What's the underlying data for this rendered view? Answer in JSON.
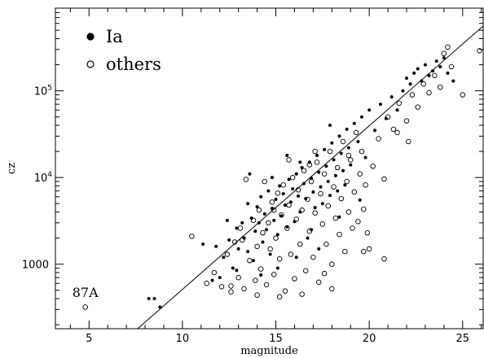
{
  "chart_data": {
    "type": "scatter",
    "title": "",
    "xlabel": "magnitude",
    "ylabel": "cz",
    "xlim": [
      3.2,
      26.1
    ],
    "ylim": [
      180,
      900000
    ],
    "yscale": "log",
    "grid": false,
    "legend_position": "top-left",
    "x_ticks": [
      {
        "value": 5,
        "label": "5"
      },
      {
        "value": 10,
        "label": "10"
      },
      {
        "value": 15,
        "label": "15"
      },
      {
        "value": 20,
        "label": "20"
      },
      {
        "value": 25,
        "label": "25"
      }
    ],
    "y_ticks": [
      {
        "value": 1000,
        "label": "1000"
      },
      {
        "value": 10000,
        "label": "10",
        "exp": "4"
      },
      {
        "value": 100000,
        "label": "10",
        "exp": "5"
      }
    ],
    "series": [
      {
        "name": "Ia",
        "marker": "filled-circle",
        "color": "#000000",
        "points": [
          [
            8.2,
            400
          ],
          [
            8.5,
            400
          ],
          [
            8.8,
            320
          ],
          [
            11.1,
            1700
          ],
          [
            11.8,
            1600
          ],
          [
            12.0,
            700
          ],
          [
            12.2,
            1200
          ],
          [
            12.5,
            1900
          ],
          [
            12.7,
            900
          ],
          [
            12.9,
            2600
          ],
          [
            13.0,
            1500
          ],
          [
            13.2,
            3000
          ],
          [
            13.3,
            2000
          ],
          [
            13.5,
            1400
          ],
          [
            13.5,
            5000
          ],
          [
            13.7,
            3400
          ],
          [
            13.8,
            1100
          ],
          [
            13.9,
            2400
          ],
          [
            14.0,
            4600
          ],
          [
            14.1,
            3000
          ],
          [
            14.2,
            6000
          ],
          [
            14.3,
            1800
          ],
          [
            14.4,
            3800
          ],
          [
            14.5,
            2500
          ],
          [
            14.6,
            7000
          ],
          [
            14.7,
            1300
          ],
          [
            14.8,
            4400
          ],
          [
            14.9,
            3200
          ],
          [
            15.0,
            5600
          ],
          [
            15.1,
            2200
          ],
          [
            15.2,
            8000
          ],
          [
            15.3,
            3600
          ],
          [
            15.4,
            6500
          ],
          [
            15.5,
            4800
          ],
          [
            15.6,
            2700
          ],
          [
            15.7,
            9500
          ],
          [
            15.8,
            5200
          ],
          [
            15.9,
            7400
          ],
          [
            16.0,
            3100
          ],
          [
            16.1,
            11000
          ],
          [
            16.2,
            6100
          ],
          [
            16.3,
            4000
          ],
          [
            16.4,
            13000
          ],
          [
            16.5,
            8500
          ],
          [
            16.6,
            5700
          ],
          [
            16.7,
            2000
          ],
          [
            16.8,
            15000
          ],
          [
            16.9,
            9800
          ],
          [
            17.0,
            6800
          ],
          [
            17.1,
            4500
          ],
          [
            17.2,
            18000
          ],
          [
            17.3,
            11500
          ],
          [
            17.4,
            7800
          ],
          [
            17.5,
            5000
          ],
          [
            17.6,
            21000
          ],
          [
            17.7,
            13500
          ],
          [
            17.8,
            9000
          ],
          [
            17.9,
            6200
          ],
          [
            18.0,
            25000
          ],
          [
            18.1,
            16000
          ],
          [
            18.2,
            10500
          ],
          [
            18.3,
            7000
          ],
          [
            18.4,
            30000
          ],
          [
            18.5,
            19000
          ],
          [
            18.6,
            12000
          ],
          [
            18.7,
            8200
          ],
          [
            18.8,
            36000
          ],
          [
            18.9,
            22000
          ],
          [
            19.0,
            14000
          ],
          [
            19.2,
            42000
          ],
          [
            19.4,
            26000
          ],
          [
            19.6,
            50000
          ],
          [
            19.8,
            17000
          ],
          [
            20.0,
            60000
          ],
          [
            20.3,
            35000
          ],
          [
            20.6,
            70000
          ],
          [
            20.9,
            48000
          ],
          [
            21.2,
            85000
          ],
          [
            21.5,
            60000
          ],
          [
            21.8,
            100000
          ],
          [
            22.0,
            140000
          ],
          [
            22.2,
            120000
          ],
          [
            22.4,
            160000
          ],
          [
            22.6,
            180000
          ],
          [
            22.8,
            130000
          ],
          [
            23.0,
            200000
          ],
          [
            23.2,
            150000
          ],
          [
            23.4,
            170000
          ],
          [
            23.6,
            220000
          ],
          [
            23.8,
            190000
          ],
          [
            24.0,
            240000
          ],
          [
            24.2,
            160000
          ],
          [
            24.5,
            130000
          ],
          [
            16.3,
            15000
          ],
          [
            15.6,
            18000
          ],
          [
            17.9,
            40000
          ],
          [
            14.8,
            10000
          ],
          [
            13.6,
            11000
          ],
          [
            12.4,
            3200
          ],
          [
            16.9,
            2500
          ],
          [
            18.4,
            3500
          ],
          [
            19.5,
            5500
          ],
          [
            17.3,
            1500
          ],
          [
            15.1,
            900
          ],
          [
            14.2,
            750
          ],
          [
            16.1,
            1200
          ],
          [
            11.6,
            650
          ],
          [
            12.9,
            850
          ]
        ]
      },
      {
        "name": "others",
        "marker": "open-circle",
        "color": "#000000",
        "points": [
          [
            4.8,
            320
          ],
          [
            10.5,
            2100
          ],
          [
            11.3,
            600
          ],
          [
            11.7,
            800
          ],
          [
            12.1,
            550
          ],
          [
            12.4,
            1300
          ],
          [
            12.6,
            480
          ],
          [
            12.8,
            1800
          ],
          [
            13.0,
            700
          ],
          [
            13.1,
            2600
          ],
          [
            13.3,
            520
          ],
          [
            13.4,
            9500
          ],
          [
            13.6,
            1100
          ],
          [
            13.8,
            3200
          ],
          [
            13.9,
            650
          ],
          [
            14.0,
            1600
          ],
          [
            14.1,
            4200
          ],
          [
            14.2,
            880
          ],
          [
            14.3,
            2300
          ],
          [
            14.4,
            9000
          ],
          [
            14.5,
            580
          ],
          [
            14.6,
            3000
          ],
          [
            14.7,
            1500
          ],
          [
            14.8,
            5200
          ],
          [
            14.9,
            760
          ],
          [
            15.0,
            2000
          ],
          [
            15.1,
            6600
          ],
          [
            15.2,
            1150
          ],
          [
            15.3,
            3700
          ],
          [
            15.4,
            8200
          ],
          [
            15.5,
            490
          ],
          [
            15.6,
            2600
          ],
          [
            15.7,
            4800
          ],
          [
            15.8,
            1300
          ],
          [
            15.9,
            10000
          ],
          [
            16.0,
            680
          ],
          [
            16.1,
            3300
          ],
          [
            16.2,
            7200
          ],
          [
            16.3,
            1700
          ],
          [
            16.4,
            4200
          ],
          [
            16.5,
            12000
          ],
          [
            16.6,
            840
          ],
          [
            16.7,
            5600
          ],
          [
            16.8,
            2400
          ],
          [
            16.9,
            9000
          ],
          [
            17.0,
            1200
          ],
          [
            17.1,
            3900
          ],
          [
            17.2,
            15000
          ],
          [
            17.3,
            620
          ],
          [
            17.4,
            6500
          ],
          [
            17.5,
            2900
          ],
          [
            17.6,
            11000
          ],
          [
            17.7,
            1700
          ],
          [
            17.8,
            4700
          ],
          [
            17.9,
            20000
          ],
          [
            18.0,
            1000
          ],
          [
            18.1,
            7800
          ],
          [
            18.2,
            3400
          ],
          [
            18.3,
            13000
          ],
          [
            18.4,
            2200
          ],
          [
            18.5,
            5700
          ],
          [
            18.6,
            26000
          ],
          [
            18.7,
            1400
          ],
          [
            18.8,
            9000
          ],
          [
            18.9,
            4000
          ],
          [
            19.0,
            16000
          ],
          [
            19.1,
            2600
          ],
          [
            19.2,
            6800
          ],
          [
            19.3,
            33000
          ],
          [
            19.4,
            3100
          ],
          [
            19.5,
            11000
          ],
          [
            19.6,
            20000
          ],
          [
            19.7,
            4300
          ],
          [
            19.8,
            8200
          ],
          [
            20.0,
            1500
          ],
          [
            20.2,
            13500
          ],
          [
            20.5,
            28000
          ],
          [
            20.8,
            9600
          ],
          [
            21.0,
            50000
          ],
          [
            21.3,
            36000
          ],
          [
            21.6,
            72000
          ],
          [
            22.0,
            45000
          ],
          [
            22.3,
            90000
          ],
          [
            22.6,
            65000
          ],
          [
            22.9,
            120000
          ],
          [
            23.2,
            95000
          ],
          [
            23.5,
            150000
          ],
          [
            23.8,
            110000
          ],
          [
            24.0,
            270000
          ],
          [
            24.2,
            320000
          ],
          [
            24.4,
            190000
          ],
          [
            25.0,
            90000
          ],
          [
            25.9,
            290000
          ],
          [
            19.7,
            1400
          ],
          [
            18.0,
            520
          ],
          [
            17.6,
            780
          ],
          [
            16.4,
            450
          ],
          [
            15.2,
            420
          ],
          [
            14.0,
            440
          ],
          [
            12.6,
            560
          ],
          [
            21.5,
            33000
          ],
          [
            22.1,
            26000
          ],
          [
            19.9,
            2300
          ],
          [
            20.8,
            1150
          ],
          [
            17.1,
            20000
          ],
          [
            13.2,
            1900
          ],
          [
            14.9,
            4200
          ],
          [
            16.8,
            14000
          ],
          [
            18.9,
            18000
          ],
          [
            15.7,
            16000
          ]
        ]
      }
    ],
    "fit_line": {
      "points": [
        [
          7.6,
          180
        ],
        [
          26.1,
          560000
        ]
      ]
    },
    "annotations": [
      {
        "text": "87A",
        "x": 4.8,
        "y": 420
      }
    ]
  }
}
